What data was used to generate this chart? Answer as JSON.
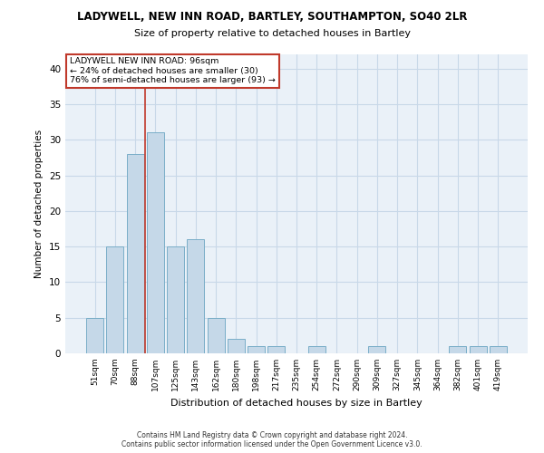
{
  "title_line1": "LADYWELL, NEW INN ROAD, BARTLEY, SOUTHAMPTON, SO40 2LR",
  "title_line2": "Size of property relative to detached houses in Bartley",
  "xlabel": "Distribution of detached houses by size in Bartley",
  "ylabel": "Number of detached properties",
  "categories": [
    "51sqm",
    "70sqm",
    "88sqm",
    "107sqm",
    "125sqm",
    "143sqm",
    "162sqm",
    "180sqm",
    "198sqm",
    "217sqm",
    "235sqm",
    "254sqm",
    "272sqm",
    "290sqm",
    "309sqm",
    "327sqm",
    "345sqm",
    "364sqm",
    "382sqm",
    "401sqm",
    "419sqm"
  ],
  "values": [
    5,
    15,
    28,
    31,
    15,
    16,
    5,
    2,
    1,
    1,
    0,
    1,
    0,
    0,
    1,
    0,
    0,
    0,
    1,
    1,
    1
  ],
  "bar_color": "#c5d8e8",
  "bar_edge_color": "#7aaec8",
  "vline_x_index": 2.5,
  "vline_color": "#c0392b",
  "annotation_text": "LADYWELL NEW INN ROAD: 96sqm\n← 24% of detached houses are smaller (30)\n76% of semi-detached houses are larger (93) →",
  "annotation_box_edge": "#c0392b",
  "ylim": [
    0,
    42
  ],
  "yticks": [
    0,
    5,
    10,
    15,
    20,
    25,
    30,
    35,
    40
  ],
  "grid_color": "#c8d8e8",
  "background_color": "#eaf1f8",
  "footer_line1": "Contains HM Land Registry data © Crown copyright and database right 2024.",
  "footer_line2": "Contains public sector information licensed under the Open Government Licence v3.0."
}
